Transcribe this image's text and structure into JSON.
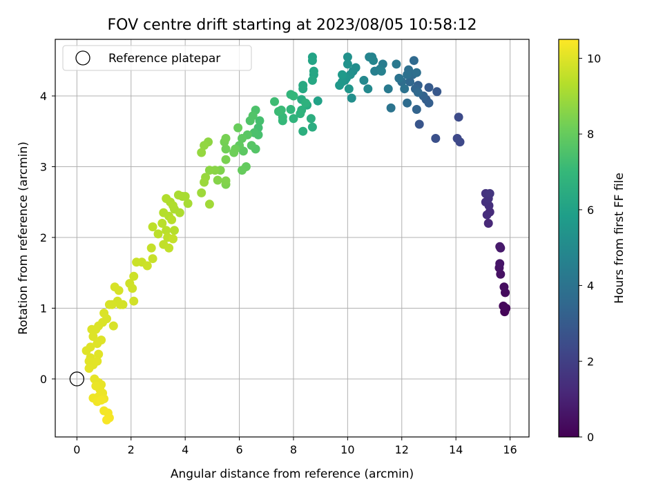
{
  "chart_data": {
    "type": "scatter",
    "title": "FOV centre drift starting at 2023/08/05 10:58:12",
    "xlabel": "Angular distance from reference (arcmin)",
    "ylabel": "Rotation from reference (arcmin)",
    "xlim": [
      -0.8,
      16.7
    ],
    "ylim": [
      -0.82,
      4.8
    ],
    "xticks": [
      0,
      2,
      4,
      6,
      8,
      10,
      12,
      14,
      16
    ],
    "yticks": [
      0,
      1,
      2,
      3,
      4
    ],
    "grid": true,
    "legend": {
      "placement": "top-left",
      "entries": [
        "Reference platepar"
      ]
    },
    "reference_point": {
      "x": 0,
      "y": 0
    },
    "colorbar": {
      "label": "Hours from first FF file",
      "range": [
        0,
        10.5
      ],
      "ticks": [
        0,
        2,
        4,
        6,
        8,
        10
      ],
      "colormap": "viridis",
      "colors": [
        "#440154",
        "#482878",
        "#3e4989",
        "#31688e",
        "#26828e",
        "#1f9e89",
        "#35b779",
        "#6ece58",
        "#b5de2b",
        "#fde725"
      ]
    },
    "series": [
      {
        "points": [
          [
            15.8,
            0.95,
            0.1
          ],
          [
            15.85,
            1.0,
            0.15
          ],
          [
            15.75,
            1.03,
            0.2
          ],
          [
            15.82,
            1.22,
            0.3
          ],
          [
            15.78,
            1.3,
            0.35
          ],
          [
            15.65,
            1.48,
            0.5
          ],
          [
            15.6,
            1.57,
            0.55
          ],
          [
            15.62,
            1.63,
            0.6
          ],
          [
            15.65,
            1.85,
            0.7
          ],
          [
            15.62,
            1.87,
            0.75
          ],
          [
            15.2,
            2.2,
            1.2
          ],
          [
            15.25,
            2.36,
            1.3
          ],
          [
            15.15,
            2.32,
            1.35
          ],
          [
            15.22,
            2.45,
            1.45
          ],
          [
            15.1,
            2.5,
            1.5
          ],
          [
            15.2,
            2.55,
            1.55
          ],
          [
            15.1,
            2.62,
            1.6
          ],
          [
            15.25,
            2.62,
            1.65
          ],
          [
            14.15,
            3.35,
            2.3
          ],
          [
            14.05,
            3.4,
            2.35
          ],
          [
            14.1,
            3.7,
            2.4
          ],
          [
            13.25,
            3.4,
            2.6
          ],
          [
            12.65,
            3.6,
            2.8
          ],
          [
            13.3,
            4.06,
            2.9
          ],
          [
            13.0,
            4.12,
            3.0
          ],
          [
            12.9,
            3.95,
            3.1
          ],
          [
            13.0,
            3.9,
            3.15
          ],
          [
            12.6,
            4.15,
            3.25
          ],
          [
            12.8,
            4.0,
            3.3
          ],
          [
            12.55,
            3.81,
            3.35
          ],
          [
            12.5,
            4.1,
            3.4
          ],
          [
            12.3,
            4.2,
            3.5
          ],
          [
            12.6,
            4.05,
            3.55
          ],
          [
            12.4,
            4.3,
            3.65
          ],
          [
            12.45,
            4.5,
            3.6
          ],
          [
            12.2,
            3.9,
            3.7
          ],
          [
            12.0,
            4.2,
            3.75
          ],
          [
            12.25,
            4.37,
            3.8
          ],
          [
            12.55,
            4.33,
            3.85
          ],
          [
            12.2,
            4.3,
            3.9
          ],
          [
            12.1,
            4.1,
            3.95
          ],
          [
            11.9,
            4.25,
            4.0
          ],
          [
            11.6,
            3.83,
            4.05
          ],
          [
            11.8,
            4.45,
            4.2
          ],
          [
            11.5,
            4.1,
            4.3
          ],
          [
            11.3,
            4.45,
            4.4
          ],
          [
            11.2,
            4.38,
            4.5
          ],
          [
            11.0,
            4.35,
            4.55
          ],
          [
            11.25,
            4.35,
            4.6
          ],
          [
            10.9,
            4.55,
            4.7
          ],
          [
            10.8,
            4.55,
            4.75
          ],
          [
            10.95,
            4.5,
            4.8
          ],
          [
            10.6,
            4.22,
            4.9
          ],
          [
            10.75,
            4.1,
            4.95
          ],
          [
            10.2,
            4.35,
            5.1
          ],
          [
            10.3,
            4.4,
            5.15
          ],
          [
            10.15,
            3.97,
            5.2
          ],
          [
            10.1,
            4.3,
            5.25
          ],
          [
            10.0,
            4.55,
            5.3
          ],
          [
            10.0,
            4.45,
            5.35
          ],
          [
            9.9,
            4.22,
            5.4
          ],
          [
            9.95,
            4.25,
            5.45
          ],
          [
            10.05,
            4.1,
            5.5
          ],
          [
            9.8,
            4.2,
            5.55
          ],
          [
            9.7,
            4.15,
            5.6
          ],
          [
            9.8,
            4.3,
            5.65
          ],
          [
            8.9,
            3.93,
            6.0
          ],
          [
            8.7,
            4.55,
            6.05
          ],
          [
            8.7,
            4.5,
            6.1
          ],
          [
            8.75,
            4.3,
            6.15
          ],
          [
            8.75,
            4.35,
            6.2
          ],
          [
            8.7,
            4.22,
            6.25
          ],
          [
            8.35,
            4.1,
            6.3
          ],
          [
            8.35,
            4.15,
            6.35
          ],
          [
            8.5,
            3.87,
            6.4
          ],
          [
            8.3,
            3.95,
            6.45
          ],
          [
            8.7,
            3.56,
            6.5
          ],
          [
            8.65,
            3.68,
            6.55
          ],
          [
            8.35,
            3.5,
            6.6
          ],
          [
            8.3,
            3.8,
            6.65
          ],
          [
            8.45,
            3.9,
            6.7
          ],
          [
            8.25,
            3.75,
            6.75
          ],
          [
            8.0,
            3.68,
            6.8
          ],
          [
            7.9,
            4.02,
            6.85
          ],
          [
            7.9,
            3.81,
            6.9
          ],
          [
            8.0,
            4.0,
            6.95
          ],
          [
            7.6,
            3.65,
            7.0
          ],
          [
            7.6,
            3.7,
            7.05
          ],
          [
            7.55,
            3.8,
            7.1
          ],
          [
            7.45,
            3.78,
            7.15
          ],
          [
            7.3,
            3.92,
            7.2
          ],
          [
            6.7,
            3.55,
            7.3
          ],
          [
            6.75,
            3.65,
            7.35
          ],
          [
            6.7,
            3.45,
            7.4
          ],
          [
            6.55,
            3.48,
            7.45
          ],
          [
            6.6,
            3.8,
            7.5
          ],
          [
            6.4,
            3.65,
            7.55
          ],
          [
            6.5,
            3.72,
            7.6
          ],
          [
            6.6,
            3.25,
            7.65
          ],
          [
            6.45,
            3.3,
            7.7
          ],
          [
            6.3,
            3.45,
            7.75
          ],
          [
            6.15,
            3.22,
            7.8
          ],
          [
            6.1,
            3.4,
            7.85
          ],
          [
            6.0,
            3.3,
            7.9
          ],
          [
            6.25,
            3.0,
            7.95
          ],
          [
            6.1,
            2.95,
            8.0
          ],
          [
            5.95,
            3.55,
            8.05
          ],
          [
            5.85,
            3.25,
            8.1
          ],
          [
            5.8,
            3.2,
            8.15
          ],
          [
            5.5,
            3.25,
            8.2
          ],
          [
            5.45,
            3.35,
            8.25
          ],
          [
            5.5,
            3.4,
            8.3
          ],
          [
            5.5,
            3.1,
            8.35
          ],
          [
            5.5,
            2.75,
            8.4
          ],
          [
            5.3,
            2.95,
            8.45
          ],
          [
            5.5,
            2.8,
            8.5
          ],
          [
            5.2,
            2.81,
            8.55
          ],
          [
            5.1,
            2.95,
            8.6
          ],
          [
            4.9,
            2.95,
            8.65
          ],
          [
            4.85,
            3.35,
            8.7
          ],
          [
            4.7,
            3.3,
            8.75
          ],
          [
            4.6,
            3.2,
            8.8
          ],
          [
            4.75,
            2.85,
            8.85
          ],
          [
            4.7,
            2.78,
            8.9
          ],
          [
            4.6,
            2.63,
            8.95
          ],
          [
            4.9,
            2.47,
            9.0
          ],
          [
            3.9,
            2.58,
            9.05
          ],
          [
            4.1,
            2.48,
            9.1
          ],
          [
            4.0,
            2.58,
            9.12
          ],
          [
            3.75,
            2.6,
            9.15
          ],
          [
            3.6,
            2.4,
            9.18
          ],
          [
            3.8,
            2.35,
            9.2
          ],
          [
            3.45,
            2.5,
            9.22
          ],
          [
            3.55,
            2.45,
            9.25
          ],
          [
            3.3,
            2.55,
            9.27
          ],
          [
            3.4,
            2.3,
            9.3
          ],
          [
            3.2,
            2.35,
            9.32
          ],
          [
            3.6,
            2.1,
            9.35
          ],
          [
            3.5,
            2.25,
            9.38
          ],
          [
            3.3,
            2.1,
            9.4
          ],
          [
            3.15,
            2.2,
            9.42
          ],
          [
            3.0,
            2.05,
            9.45
          ],
          [
            2.8,
            2.15,
            9.47
          ],
          [
            3.35,
            2.0,
            9.5
          ],
          [
            3.2,
            1.9,
            9.52
          ],
          [
            3.4,
            1.85,
            9.55
          ],
          [
            3.55,
            1.98,
            9.57
          ],
          [
            2.75,
            1.85,
            9.6
          ],
          [
            2.8,
            1.7,
            9.62
          ],
          [
            2.4,
            1.65,
            9.65
          ],
          [
            2.2,
            1.65,
            9.67
          ],
          [
            2.6,
            1.6,
            9.7
          ],
          [
            2.1,
            1.45,
            9.72
          ],
          [
            1.95,
            1.35,
            9.74
          ],
          [
            2.05,
            1.28,
            9.76
          ],
          [
            2.1,
            1.1,
            9.78
          ],
          [
            1.7,
            1.05,
            9.8
          ],
          [
            1.5,
            1.1,
            9.82
          ],
          [
            1.6,
            1.05,
            9.84
          ],
          [
            1.3,
            1.05,
            9.86
          ],
          [
            1.2,
            1.05,
            9.87
          ],
          [
            1.55,
            1.25,
            9.88
          ],
          [
            1.4,
            1.3,
            9.89
          ],
          [
            1.35,
            0.75,
            9.9
          ],
          [
            1.1,
            0.85,
            9.92
          ],
          [
            1.0,
            0.93,
            9.93
          ],
          [
            0.95,
            0.8,
            9.94
          ],
          [
            0.8,
            0.75,
            9.95
          ],
          [
            0.55,
            0.7,
            9.96
          ],
          [
            0.7,
            0.7,
            9.97
          ],
          [
            0.6,
            0.6,
            9.98
          ],
          [
            0.9,
            0.55,
            9.99
          ],
          [
            0.75,
            0.5,
            10.0
          ],
          [
            0.5,
            0.45,
            10.01
          ],
          [
            0.35,
            0.4,
            10.02
          ],
          [
            0.5,
            0.3,
            10.03
          ],
          [
            0.8,
            0.35,
            10.05
          ],
          [
            0.45,
            0.25,
            10.06
          ],
          [
            0.6,
            0.2,
            10.07
          ],
          [
            0.75,
            0.25,
            10.08
          ],
          [
            0.45,
            0.15,
            10.1
          ],
          [
            0.65,
            0.0,
            10.12
          ],
          [
            0.8,
            -0.05,
            10.14
          ],
          [
            0.9,
            -0.08,
            10.16
          ],
          [
            0.85,
            -0.15,
            10.18
          ],
          [
            0.7,
            -0.1,
            10.2
          ],
          [
            0.95,
            -0.2,
            10.22
          ],
          [
            0.8,
            -0.25,
            10.24
          ],
          [
            0.6,
            -0.27,
            10.26
          ],
          [
            1.0,
            -0.28,
            10.28
          ],
          [
            0.75,
            -0.32,
            10.3
          ],
          [
            0.9,
            -0.3,
            10.32
          ],
          [
            1.0,
            -0.45,
            10.34
          ],
          [
            1.15,
            -0.48,
            10.36
          ],
          [
            1.2,
            -0.55,
            10.38
          ],
          [
            1.1,
            -0.58,
            10.4
          ]
        ]
      }
    ]
  }
}
